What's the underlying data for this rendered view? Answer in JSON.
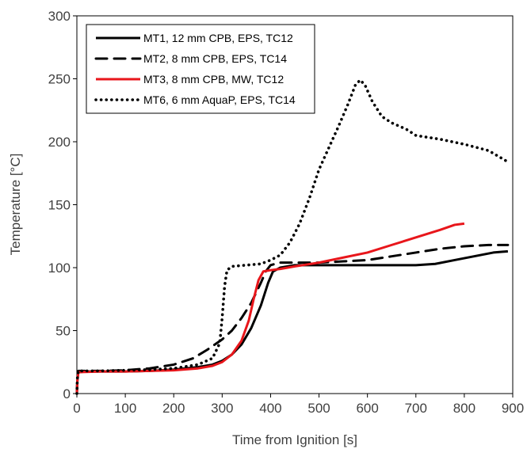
{
  "chart_data": {
    "type": "line",
    "title": "",
    "xlabel": "Time from Ignition [s]",
    "ylabel": "Temperature [°C]",
    "xlim": [
      0,
      900
    ],
    "ylim": [
      0,
      300
    ],
    "xticks": [
      0,
      100,
      200,
      300,
      400,
      500,
      600,
      700,
      800,
      900
    ],
    "yticks": [
      0,
      50,
      100,
      150,
      200,
      250,
      300
    ],
    "xtick_labels": [
      "0",
      "100",
      "200",
      "300",
      "400",
      "500",
      "600",
      "700",
      "800",
      "900"
    ],
    "ytick_labels": [
      "0",
      "50",
      "100",
      "150",
      "200",
      "250",
      "300"
    ],
    "grid": false,
    "legend_position": "top-left",
    "series": [
      {
        "name": "MT1, 12 mm CPB, EPS, TC12",
        "color": "#000000",
        "style": "solid",
        "points": [
          [
            0,
            0
          ],
          [
            1,
            10
          ],
          [
            3,
            17
          ],
          [
            20,
            17.5
          ],
          [
            50,
            17.5
          ],
          [
            100,
            17.5
          ],
          [
            150,
            18
          ],
          [
            200,
            19
          ],
          [
            250,
            21
          ],
          [
            280,
            23
          ],
          [
            300,
            26
          ],
          [
            320,
            31
          ],
          [
            340,
            39
          ],
          [
            360,
            52
          ],
          [
            380,
            70
          ],
          [
            395,
            88
          ],
          [
            405,
            97
          ],
          [
            420,
            100
          ],
          [
            450,
            102
          ],
          [
            500,
            102
          ],
          [
            550,
            102
          ],
          [
            600,
            102
          ],
          [
            650,
            102
          ],
          [
            700,
            102
          ],
          [
            740,
            103
          ],
          [
            780,
            106
          ],
          [
            820,
            109
          ],
          [
            860,
            112
          ],
          [
            890,
            113
          ]
        ]
      },
      {
        "name": "MT2, 8 mm CPB, EPS, TC14",
        "color": "#000000",
        "style": "dashed",
        "points": [
          [
            0,
            0
          ],
          [
            1,
            12
          ],
          [
            3,
            18
          ],
          [
            50,
            18
          ],
          [
            100,
            18.5
          ],
          [
            150,
            20
          ],
          [
            200,
            23
          ],
          [
            240,
            28
          ],
          [
            270,
            35
          ],
          [
            300,
            43
          ],
          [
            320,
            50
          ],
          [
            340,
            60
          ],
          [
            360,
            72
          ],
          [
            380,
            88
          ],
          [
            390,
            97
          ],
          [
            400,
            102
          ],
          [
            420,
            104
          ],
          [
            450,
            104
          ],
          [
            500,
            104
          ],
          [
            550,
            105
          ],
          [
            600,
            106
          ],
          [
            650,
            109
          ],
          [
            700,
            112
          ],
          [
            750,
            115
          ],
          [
            800,
            117
          ],
          [
            850,
            118
          ],
          [
            890,
            118
          ]
        ]
      },
      {
        "name": "MT3, 8 mm CPB, MW, TC12",
        "color": "#e8161b",
        "style": "solid",
        "points": [
          [
            0,
            0
          ],
          [
            1,
            10
          ],
          [
            3,
            17
          ],
          [
            50,
            17.5
          ],
          [
            100,
            17.5
          ],
          [
            150,
            18
          ],
          [
            200,
            18.5
          ],
          [
            250,
            20
          ],
          [
            280,
            22
          ],
          [
            300,
            25
          ],
          [
            320,
            31
          ],
          [
            340,
            42
          ],
          [
            355,
            58
          ],
          [
            365,
            75
          ],
          [
            375,
            90
          ],
          [
            385,
            97
          ],
          [
            400,
            98
          ],
          [
            420,
            99
          ],
          [
            450,
            101
          ],
          [
            500,
            104
          ],
          [
            550,
            108
          ],
          [
            600,
            112
          ],
          [
            650,
            118
          ],
          [
            700,
            124
          ],
          [
            750,
            130
          ],
          [
            780,
            134
          ],
          [
            800,
            135
          ]
        ]
      },
      {
        "name": "MT6, 6 mm AquaP, EPS, TC14",
        "color": "#000000",
        "style": "dotted",
        "points": [
          [
            0,
            0
          ],
          [
            1,
            12
          ],
          [
            3,
            18
          ],
          [
            50,
            18
          ],
          [
            100,
            18.5
          ],
          [
            150,
            19
          ],
          [
            200,
            20
          ],
          [
            250,
            23
          ],
          [
            280,
            28
          ],
          [
            295,
            40
          ],
          [
            300,
            60
          ],
          [
            305,
            85
          ],
          [
            310,
            98
          ],
          [
            320,
            101
          ],
          [
            350,
            102
          ],
          [
            380,
            103
          ],
          [
            400,
            106
          ],
          [
            420,
            110
          ],
          [
            440,
            120
          ],
          [
            460,
            135
          ],
          [
            480,
            155
          ],
          [
            500,
            178
          ],
          [
            520,
            195
          ],
          [
            540,
            212
          ],
          [
            560,
            230
          ],
          [
            575,
            245
          ],
          [
            585,
            249
          ],
          [
            595,
            245
          ],
          [
            610,
            232
          ],
          [
            630,
            220
          ],
          [
            650,
            215
          ],
          [
            680,
            210
          ],
          [
            700,
            205
          ],
          [
            750,
            202
          ],
          [
            800,
            198
          ],
          [
            850,
            193
          ],
          [
            890,
            184
          ]
        ]
      }
    ]
  }
}
